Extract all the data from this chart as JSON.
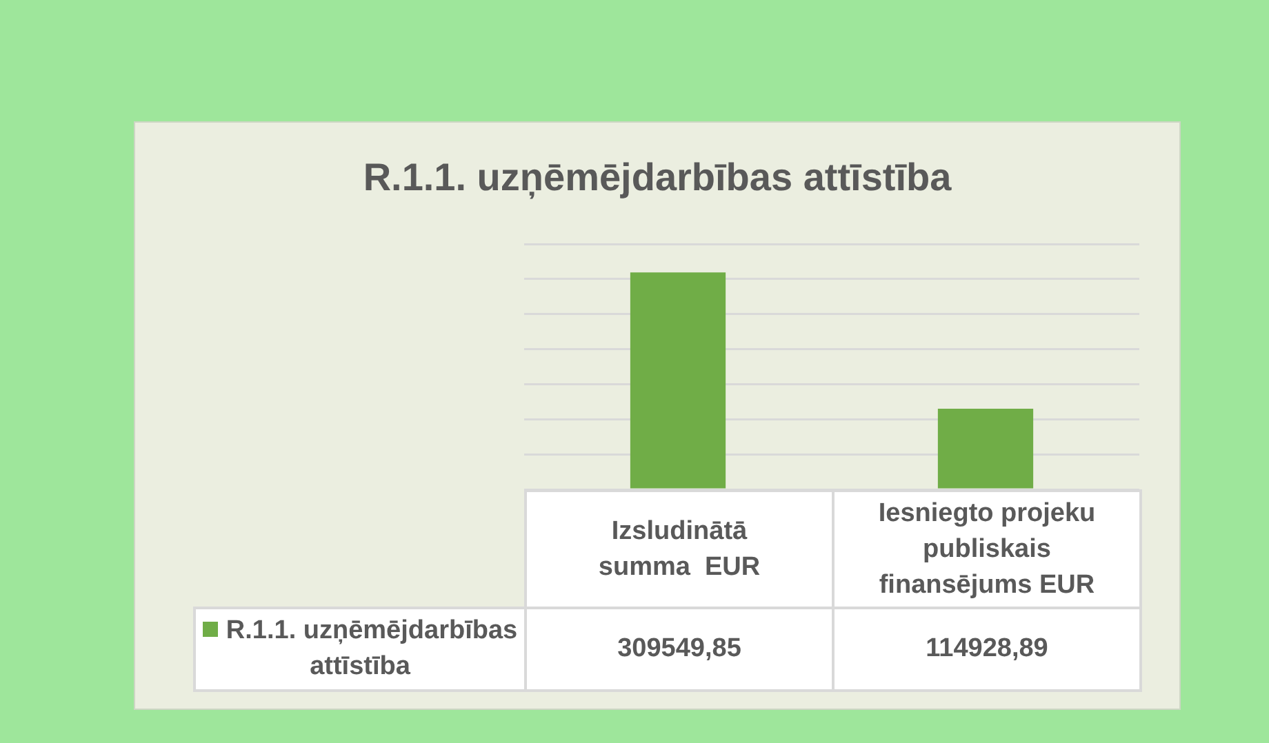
{
  "chart_data": {
    "type": "bar",
    "title": "R.1.1. uzņēmējdarbības attīstība",
    "categories": [
      "Izsludinātā summa  EUR",
      "Iesniegto projeku publiskais finansējums EUR"
    ],
    "series": [
      {
        "name": "R.1.1. uzņēmējdarbības attīstība",
        "color": "#70ad47",
        "values": [
          309549.85,
          114928.89
        ],
        "value_labels": [
          "309549,85",
          "114928,89"
        ]
      }
    ],
    "ylim": [
      0,
      350000
    ],
    "yticks": [
      {
        "value": 0,
        "label": null
      },
      {
        "value": 50000,
        "label": null
      },
      {
        "value": 100000,
        "label": null
      },
      {
        "value": 150000,
        "label": null
      },
      {
        "value": 200000,
        "label": null
      },
      {
        "value": 250000,
        "label": null
      },
      {
        "value": 300000,
        "label": null
      },
      {
        "value": 350000,
        "label": null
      }
    ],
    "grid": "y",
    "legend": "bottom left",
    "tick_labels": "x"
  }
}
